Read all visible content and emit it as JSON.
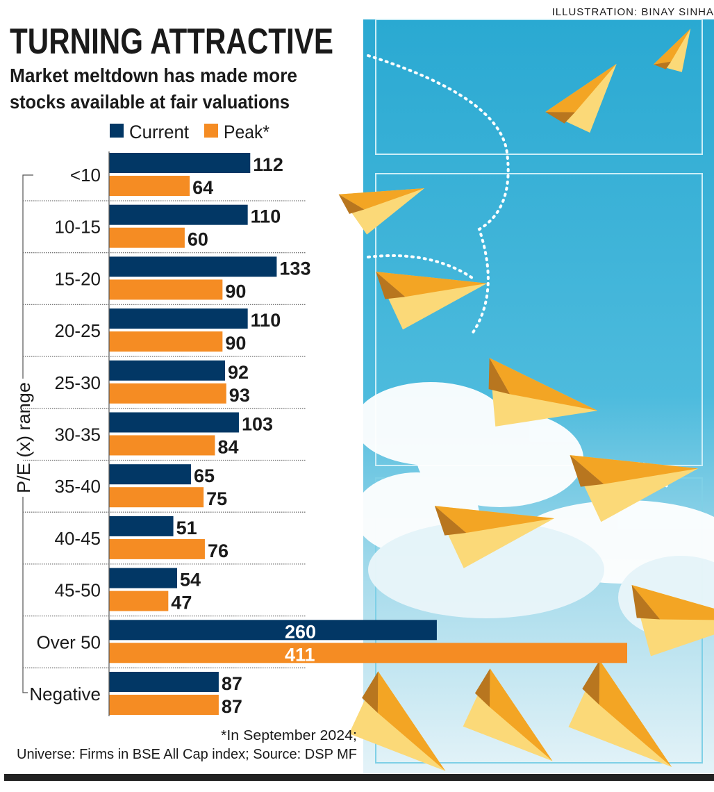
{
  "credit": "ILLUSTRATION: BINAY SINHA",
  "colors": {
    "current": "#023765",
    "peak": "#f58c23"
  },
  "chart_data": {
    "type": "bar",
    "orientation": "horizontal",
    "title": "TURNING ATTRACTIVE",
    "subtitle_lines": [
      "Market meltdown has made more",
      "stocks available at fair valuations"
    ],
    "ylabel": "P/E (x) range",
    "xlabel": "",
    "legend": [
      "Current",
      "Peak*"
    ],
    "legend_placement": "top",
    "categories": [
      "<10",
      "10-15",
      "15-20",
      "20-25",
      "25-30",
      "30-35",
      "35-40",
      "40-45",
      "45-50",
      "Over 50",
      "Negative"
    ],
    "series": [
      {
        "name": "Current",
        "values": [
          112,
          110,
          133,
          110,
          92,
          103,
          65,
          51,
          54,
          260,
          87
        ]
      },
      {
        "name": "Peak*",
        "values": [
          64,
          60,
          90,
          90,
          93,
          84,
          75,
          76,
          47,
          411,
          87
        ]
      }
    ],
    "xlim": [
      0,
      411
    ],
    "grid": false,
    "notes": [
      "*In September 2024;",
      "Universe: Firms in BSE All Cap index; Source: DSP MF"
    ]
  }
}
